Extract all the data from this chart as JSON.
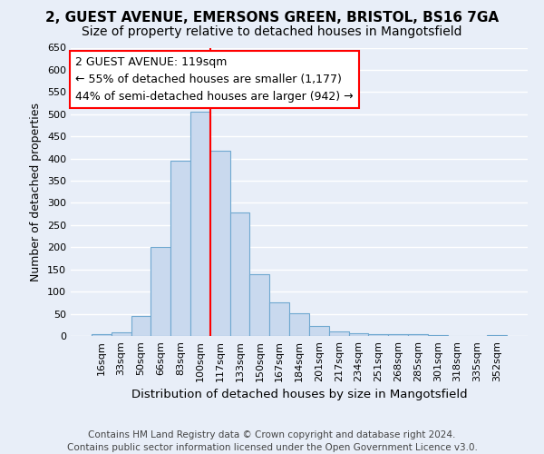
{
  "title1": "2, GUEST AVENUE, EMERSONS GREEN, BRISTOL, BS16 7GA",
  "title2": "Size of property relative to detached houses in Mangotsfield",
  "xlabel": "Distribution of detached houses by size in Mangotsfield",
  "ylabel": "Number of detached properties",
  "categories": [
    "16sqm",
    "33sqm",
    "50sqm",
    "66sqm",
    "83sqm",
    "100sqm",
    "117sqm",
    "133sqm",
    "150sqm",
    "167sqm",
    "184sqm",
    "201sqm",
    "217sqm",
    "234sqm",
    "251sqm",
    "268sqm",
    "285sqm",
    "301sqm",
    "318sqm",
    "335sqm",
    "352sqm"
  ],
  "values": [
    5,
    8,
    45,
    200,
    395,
    505,
    418,
    278,
    140,
    75,
    52,
    22,
    10,
    7,
    5,
    4,
    4,
    2,
    1,
    1,
    2
  ],
  "bar_color": "#c9d9ee",
  "bar_edge_color": "#6fa8d0",
  "vline_color": "red",
  "vline_x_index": 6.0,
  "annotation_title": "2 GUEST AVENUE: 119sqm",
  "annotation_line1": "← 55% of detached houses are smaller (1,177)",
  "annotation_line2": "44% of semi-detached houses are larger (942) →",
  "ylim": [
    0,
    650
  ],
  "yticks": [
    0,
    50,
    100,
    150,
    200,
    250,
    300,
    350,
    400,
    450,
    500,
    550,
    600,
    650
  ],
  "bg_color": "#e8eef8",
  "grid_color": "#ffffff",
  "title1_fontsize": 11,
  "title2_fontsize": 10,
  "xlabel_fontsize": 9.5,
  "ylabel_fontsize": 9,
  "tick_fontsize": 8,
  "annotation_fontsize": 9,
  "footer1": "Contains HM Land Registry data © Crown copyright and database right 2024.",
  "footer2": "Contains public sector information licensed under the Open Government Licence v3.0.",
  "footer_fontsize": 7.5
}
